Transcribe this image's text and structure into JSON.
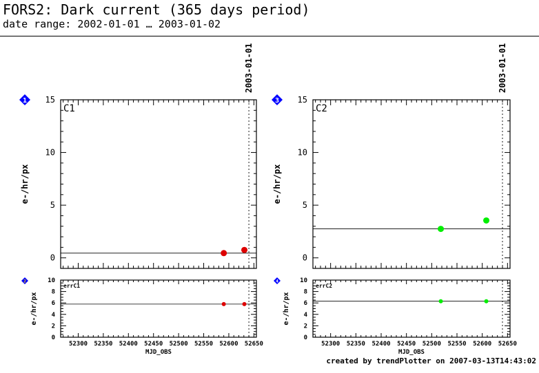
{
  "header": {
    "title": "FORS2: Dark current (365 days period)",
    "subtitle": "date range: 2002-01-01 … 2003-01-02"
  },
  "footer": "created by trendPlotter on 2007-03-13T14:43:02",
  "colors": {
    "c1": "#dd0000",
    "c2": "#00ee00",
    "marker": "#0000ff",
    "axis": "#000000"
  },
  "chart_data": [
    {
      "type": "scatter",
      "label": "C1",
      "marker_number": "1",
      "ylabel": "e-/hr/px",
      "xlim": [
        52265,
        52655
      ],
      "ylim": [
        -1,
        15
      ],
      "yticks": [
        0,
        5,
        10,
        15
      ],
      "reference_line": 0.45,
      "marker_line": {
        "x": 52640,
        "label": "2003-01-01"
      },
      "points": [
        {
          "x": 52590,
          "y": 0.45
        },
        {
          "x": 52631,
          "y": 0.75
        }
      ]
    },
    {
      "type": "scatter",
      "label": "errC1",
      "marker_number": "2",
      "ylabel": "e-/hr/px",
      "xlabel": "MJD_OBS",
      "xlim": [
        52265,
        52655
      ],
      "ylim": [
        0,
        10
      ],
      "yticks": [
        0,
        2,
        4,
        6,
        8,
        10
      ],
      "xticks": [
        52300,
        52350,
        52400,
        52450,
        52500,
        52550,
        52600,
        52650
      ],
      "reference_line": 5.8,
      "marker_line": {
        "x": 52640
      },
      "points": [
        {
          "x": 52590,
          "y": 5.8
        },
        {
          "x": 52631,
          "y": 5.8
        }
      ]
    },
    {
      "type": "scatter",
      "label": "C2",
      "marker_number": "3",
      "ylabel": "e-/hr/px",
      "xlim": [
        52265,
        52655
      ],
      "ylim": [
        -1,
        15
      ],
      "yticks": [
        0,
        5,
        10,
        15
      ],
      "reference_line": 2.75,
      "marker_line": {
        "x": 52640,
        "label": "2003-01-01"
      },
      "points": [
        {
          "x": 52518,
          "y": 2.75
        },
        {
          "x": 52608,
          "y": 3.55
        }
      ]
    },
    {
      "type": "scatter",
      "label": "errC2",
      "marker_number": "4",
      "ylabel": "e-/hr/px",
      "xlabel": "MJD_OBS",
      "xlim": [
        52265,
        52655
      ],
      "ylim": [
        0,
        10
      ],
      "yticks": [
        0,
        2,
        4,
        6,
        8,
        10
      ],
      "xticks": [
        52300,
        52350,
        52400,
        52450,
        52500,
        52550,
        52600,
        52650
      ],
      "reference_line": 6.3,
      "marker_line": {
        "x": 52640
      },
      "points": [
        {
          "x": 52518,
          "y": 6.3
        },
        {
          "x": 52608,
          "y": 6.3
        }
      ]
    }
  ]
}
